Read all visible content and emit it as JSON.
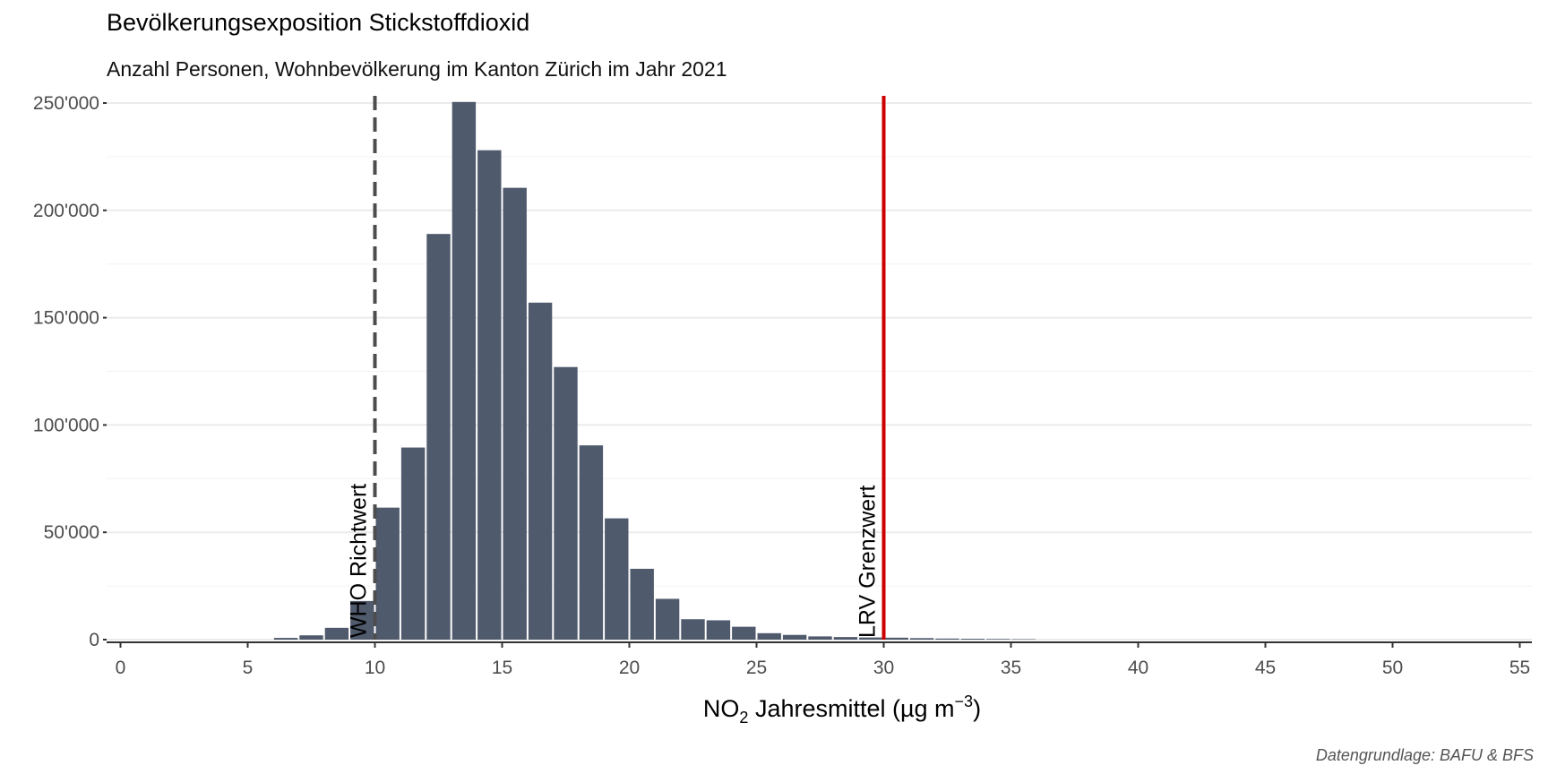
{
  "chart_data": {
    "type": "bar",
    "title": "Bevölkerungsexposition Stickstoffdioxid",
    "subtitle": "Anzahl Personen, Wohnbevölkerung im Kanton Zürich im Jahr 2021",
    "xlabel": {
      "main": "NO",
      "sub": "2",
      "rest": " Jahresmittel (µg m",
      "sup": "−3",
      "end": ")"
    },
    "caption": "Datengrundlage: BAFU & BFS",
    "xlim": [
      0,
      55
    ],
    "ylim": [
      0,
      250000
    ],
    "x_ticks": [
      0,
      5,
      10,
      15,
      20,
      25,
      30,
      35,
      40,
      45,
      50,
      55
    ],
    "y_ticks": [
      {
        "value": 0,
        "label": "0"
      },
      {
        "value": 50000,
        "label": "50'000"
      },
      {
        "value": 100000,
        "label": "100'000"
      },
      {
        "value": 150000,
        "label": "150'000"
      },
      {
        "value": 200000,
        "label": "200'000"
      },
      {
        "value": 250000,
        "label": "250'000"
      }
    ],
    "bin_width": 1,
    "x": [
      6,
      7,
      8,
      9,
      10,
      11,
      12,
      13,
      14,
      15,
      16,
      17,
      18,
      19,
      20,
      21,
      22,
      23,
      24,
      25,
      26,
      27,
      28,
      29,
      30,
      31,
      32,
      33,
      34,
      35
    ],
    "values": [
      800,
      2000,
      5500,
      18000,
      61500,
      89500,
      189000,
      250500,
      228000,
      210500,
      157000,
      127000,
      90500,
      56500,
      33000,
      19000,
      9500,
      9000,
      6000,
      3000,
      2200,
      1500,
      1200,
      1000,
      900,
      700,
      500,
      400,
      300,
      200
    ],
    "bar_color": "#4f5a6d",
    "reference_lines": [
      {
        "x": 10,
        "label": "WHO Richtwert",
        "color": "#4d4d4d",
        "style": "dashed"
      },
      {
        "x": 30,
        "label": "LRV Grenzwert",
        "color": "#cc0000",
        "style": "solid"
      }
    ],
    "grid": true,
    "legend": "none"
  }
}
